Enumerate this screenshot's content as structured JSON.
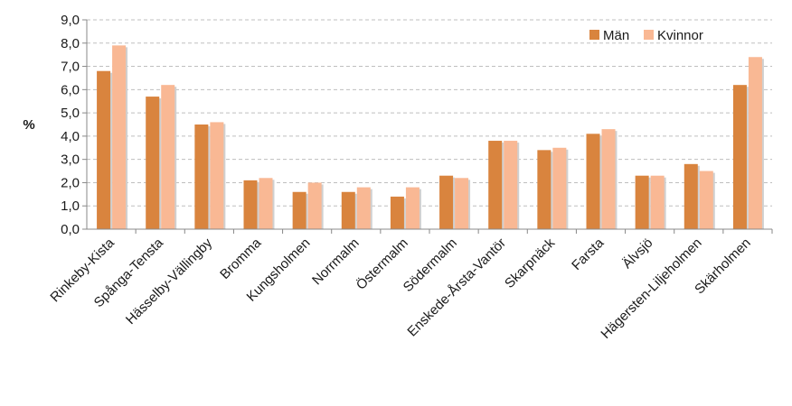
{
  "chart_data": {
    "type": "bar",
    "ylabel": "%",
    "ylim": [
      0,
      9
    ],
    "ytick_step": 1,
    "ytick_labels": [
      "0,0",
      "1,0",
      "2,0",
      "3,0",
      "4,0",
      "5,0",
      "6,0",
      "7,0",
      "8,0",
      "9,0"
    ],
    "grid": true,
    "legend_position": "top-right",
    "categories": [
      "Rinkeby-Kista",
      "Spånga-Tensta",
      "Hässelby-Vällingby",
      "Bromma",
      "Kungsholmen",
      "Norrmalm",
      "Östermalm",
      "Södermalm",
      "Enskede-Årsta-Vantör",
      "Skarpnäck",
      "Farsta",
      "Älvsjö",
      "Hägersten-Liljeholmen",
      "Skärholmen"
    ],
    "series": [
      {
        "name": "Män",
        "color": "#D9843E",
        "values": [
          6.8,
          5.7,
          4.5,
          2.1,
          1.6,
          1.6,
          1.4,
          2.3,
          3.8,
          3.4,
          4.1,
          2.3,
          2.8,
          6.2
        ]
      },
      {
        "name": "Kvinnor",
        "color": "#F9B894",
        "values": [
          7.9,
          6.2,
          4.6,
          2.2,
          2.0,
          1.8,
          1.8,
          2.2,
          3.8,
          3.5,
          4.3,
          2.3,
          2.5,
          7.4
        ]
      }
    ]
  }
}
